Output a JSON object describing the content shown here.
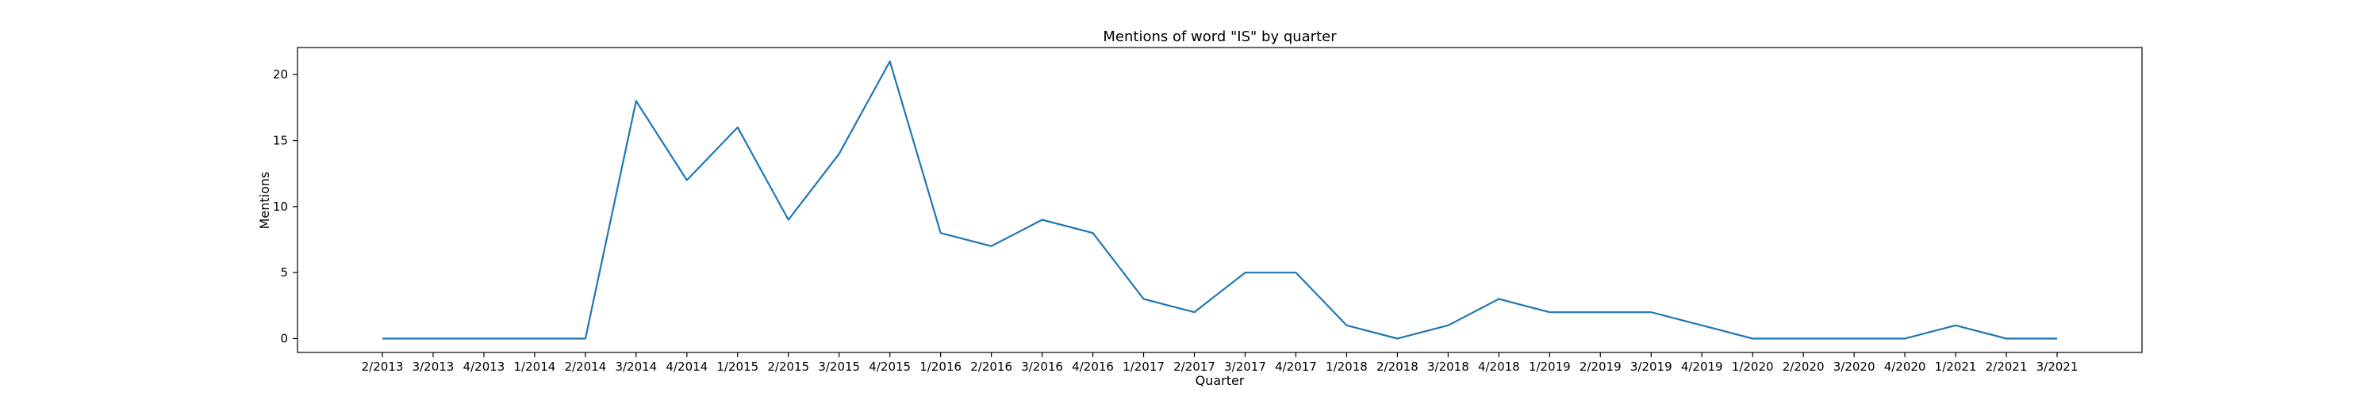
{
  "chart_data": {
    "type": "line",
    "title": "Mentions of word \"IS\" by quarter",
    "xlabel": "Quarter",
    "ylabel": "Mentions",
    "categories": [
      "2/2013",
      "3/2013",
      "4/2013",
      "1/2014",
      "2/2014",
      "3/2014",
      "4/2014",
      "1/2015",
      "2/2015",
      "3/2015",
      "4/2015",
      "1/2016",
      "2/2016",
      "3/2016",
      "4/2016",
      "1/2017",
      "2/2017",
      "3/2017",
      "4/2017",
      "1/2018",
      "2/2018",
      "3/2018",
      "4/2018",
      "1/2019",
      "2/2019",
      "3/2019",
      "4/2019",
      "1/2020",
      "2/2020",
      "3/2020",
      "4/2020",
      "1/2021",
      "2/2021",
      "3/2021"
    ],
    "series": [
      {
        "values": [
          0,
          0,
          0,
          0,
          0,
          18,
          12,
          16,
          9,
          14,
          21,
          8,
          7,
          9,
          8,
          3,
          2,
          5,
          5,
          1,
          0,
          1,
          3,
          2,
          2,
          2,
          1,
          0,
          0,
          0,
          0,
          1,
          0,
          0
        ],
        "color": "#1f77b4"
      }
    ],
    "yticks": [
      0,
      5,
      10,
      15,
      20
    ],
    "ylim": [
      -1.05,
      22.05
    ],
    "grid": false,
    "legend": "none"
  }
}
